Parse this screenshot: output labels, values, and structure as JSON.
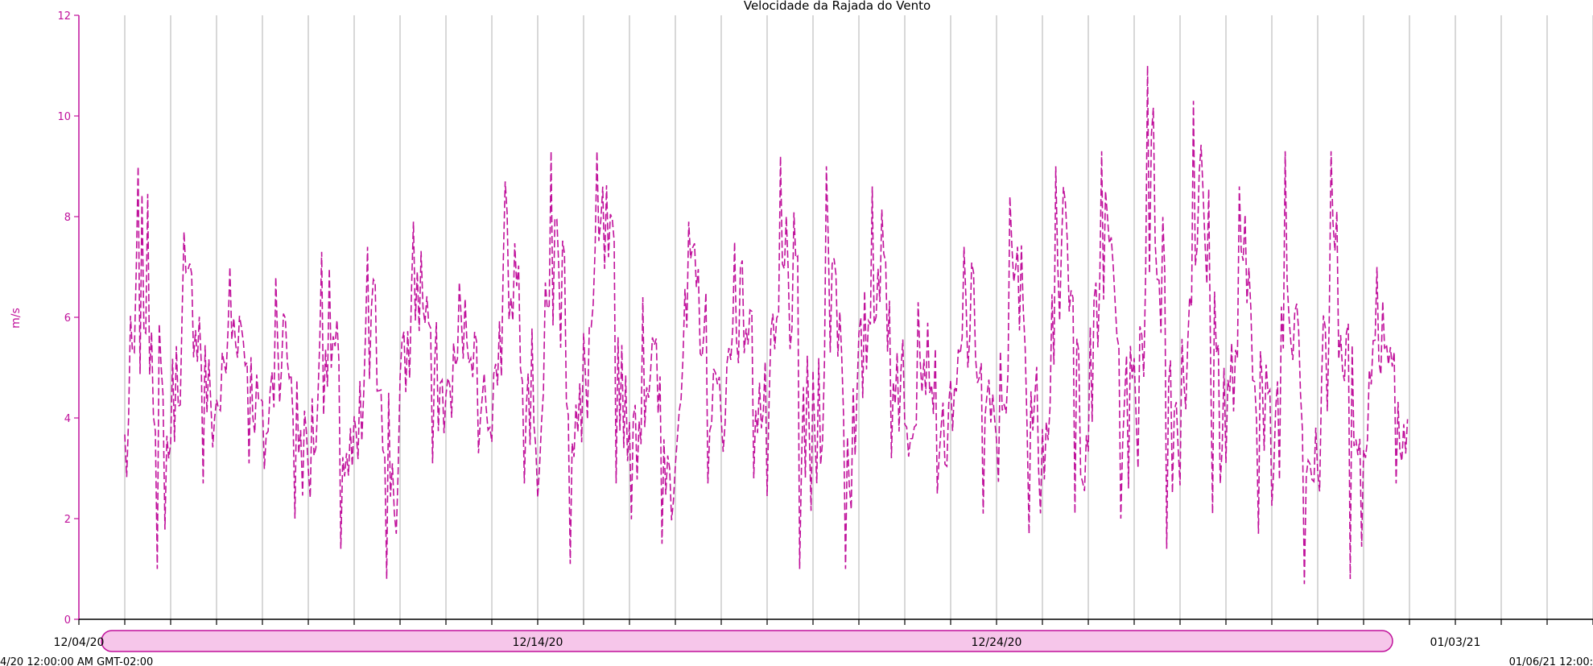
{
  "colors": {
    "series": "#c0119b",
    "grid": "#c8c8c8",
    "axis": "#000000",
    "scrollbar_fill": "#f6c6ea",
    "scrollbar_stroke": "#c0119b"
  },
  "footer": {
    "left_timestamp": "4/20 12:00:00 AM GMT-02:00",
    "right_timestamp": "01/06/21 12:00:"
  },
  "chart_data": {
    "type": "line",
    "title": "Velocidade da Rajada do Vento",
    "ylabel": "m/s",
    "xlabel": "",
    "ylim": [
      0,
      12
    ],
    "yticks": [
      0,
      2,
      4,
      6,
      8,
      10,
      12
    ],
    "xlim": [
      "2020-12-04",
      "2021-01-06"
    ],
    "x_tick_labels": [
      {
        "date": "2020-12-04",
        "label": "12/04/20"
      },
      {
        "date": "2020-12-14",
        "label": "12/14/20"
      },
      {
        "date": "2020-12-24",
        "label": "12/24/20"
      },
      {
        "date": "2021-01-03",
        "label": "01/03/21"
      }
    ],
    "grid": "vertical, daily",
    "series": [
      {
        "start": "2020-12-05",
        "end": "2021-01-01",
        "daily_range": [
          {
            "date": "2020-12-05",
            "min": 1.0,
            "max": 9.0
          },
          {
            "date": "2020-12-06",
            "min": 2.7,
            "max": 7.7
          },
          {
            "date": "2020-12-07",
            "min": 3.1,
            "max": 7.0
          },
          {
            "date": "2020-12-08",
            "min": 2.0,
            "max": 6.8
          },
          {
            "date": "2020-12-09",
            "min": 1.4,
            "max": 7.3
          },
          {
            "date": "2020-12-10",
            "min": 0.8,
            "max": 7.4
          },
          {
            "date": "2020-12-11",
            "min": 3.1,
            "max": 7.9
          },
          {
            "date": "2020-12-12",
            "min": 3.3,
            "max": 6.7
          },
          {
            "date": "2020-12-13",
            "min": 2.7,
            "max": 8.7
          },
          {
            "date": "2020-12-14",
            "min": 1.1,
            "max": 9.3
          },
          {
            "date": "2020-12-15",
            "min": 2.7,
            "max": 9.3
          },
          {
            "date": "2020-12-16",
            "min": 1.5,
            "max": 6.4
          },
          {
            "date": "2020-12-17",
            "min": 2.7,
            "max": 7.9
          },
          {
            "date": "2020-12-18",
            "min": 2.8,
            "max": 7.5
          },
          {
            "date": "2020-12-19",
            "min": 1.0,
            "max": 9.2
          },
          {
            "date": "2020-12-20",
            "min": 1.0,
            "max": 9.0
          },
          {
            "date": "2020-12-21",
            "min": 3.2,
            "max": 8.6
          },
          {
            "date": "2020-12-22",
            "min": 2.5,
            "max": 6.3
          },
          {
            "date": "2020-12-23",
            "min": 2.1,
            "max": 7.4
          },
          {
            "date": "2020-12-24",
            "min": 1.7,
            "max": 8.4
          },
          {
            "date": "2020-12-25",
            "min": 2.1,
            "max": 9.0
          },
          {
            "date": "2020-12-26",
            "min": 2.0,
            "max": 9.3
          },
          {
            "date": "2020-12-27",
            "min": 1.4,
            "max": 11.0
          },
          {
            "date": "2020-12-28",
            "min": 2.1,
            "max": 10.3
          },
          {
            "date": "2020-12-29",
            "min": 1.7,
            "max": 8.6
          },
          {
            "date": "2020-12-30",
            "min": 0.7,
            "max": 9.3
          },
          {
            "date": "2020-12-31",
            "min": 0.8,
            "max": 9.3
          },
          {
            "date": "2021-01-01",
            "min": 2.7,
            "max": 7.0
          }
        ]
      }
    ]
  }
}
